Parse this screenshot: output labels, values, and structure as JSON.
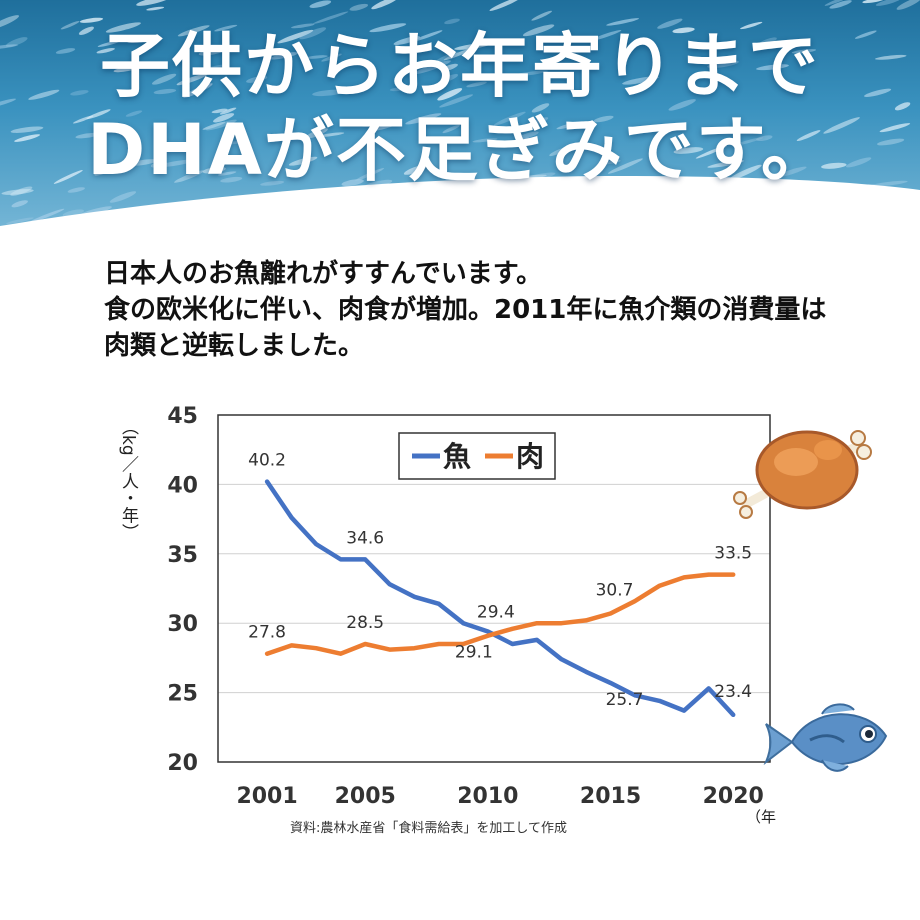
{
  "headline": {
    "line1": "子供からお年寄りまで",
    "line2": "DHAが不足ぎみです。"
  },
  "intro": {
    "line1": "日本人のお魚離れがすすんでいます。",
    "line2": "食の欧米化に伴い、肉食が増加。2011年に魚介類の消費量は",
    "line3": "肉類と逆転しました。"
  },
  "chart_data": {
    "type": "line",
    "x": [
      2001,
      2002,
      2003,
      2004,
      2005,
      2006,
      2007,
      2008,
      2009,
      2010,
      2011,
      2012,
      2013,
      2014,
      2015,
      2016,
      2017,
      2018,
      2019,
      2020
    ],
    "series": [
      {
        "name": "魚",
        "color": "#4472c4",
        "values": [
          40.2,
          37.6,
          35.7,
          34.6,
          34.6,
          32.8,
          31.9,
          31.4,
          30.0,
          29.4,
          28.5,
          28.8,
          27.4,
          26.5,
          25.7,
          24.8,
          24.4,
          23.7,
          25.3,
          23.4
        ]
      },
      {
        "name": "肉",
        "color": "#ed7d31",
        "values": [
          27.8,
          28.4,
          28.2,
          27.8,
          28.5,
          28.1,
          28.2,
          28.5,
          28.5,
          29.1,
          29.6,
          30.0,
          30.0,
          30.2,
          30.7,
          31.6,
          32.7,
          33.3,
          33.5,
          33.5
        ]
      }
    ],
    "data_labels": [
      {
        "series": 0,
        "x": 2001,
        "text": "40.2"
      },
      {
        "series": 0,
        "x": 2005,
        "text": "34.6"
      },
      {
        "series": 0,
        "x": 2010,
        "text": "29.4"
      },
      {
        "series": 0,
        "x": 2015,
        "text": "25.7"
      },
      {
        "series": 0,
        "x": 2020,
        "text": "23.4"
      },
      {
        "series": 1,
        "x": 2001,
        "text": "27.8"
      },
      {
        "series": 1,
        "x": 2005,
        "text": "28.5"
      },
      {
        "series": 1,
        "x": 2010,
        "text": "29.1"
      },
      {
        "series": 1,
        "x": 2015,
        "text": "30.7"
      },
      {
        "series": 1,
        "x": 2020,
        "text": "33.5"
      }
    ],
    "ylim": [
      20,
      45
    ],
    "yticks": [
      20,
      25,
      30,
      35,
      40,
      45
    ],
    "xticks": [
      2001,
      2005,
      2010,
      2015,
      2020
    ],
    "xlim": [
      1999,
      2021.5
    ],
    "ylabel": "（kg／人・年）",
    "xlabel": "（年",
    "grid": true,
    "legend_position": "top-center",
    "source": "資料:農林水産省「食料需給表」を加工して作成"
  }
}
